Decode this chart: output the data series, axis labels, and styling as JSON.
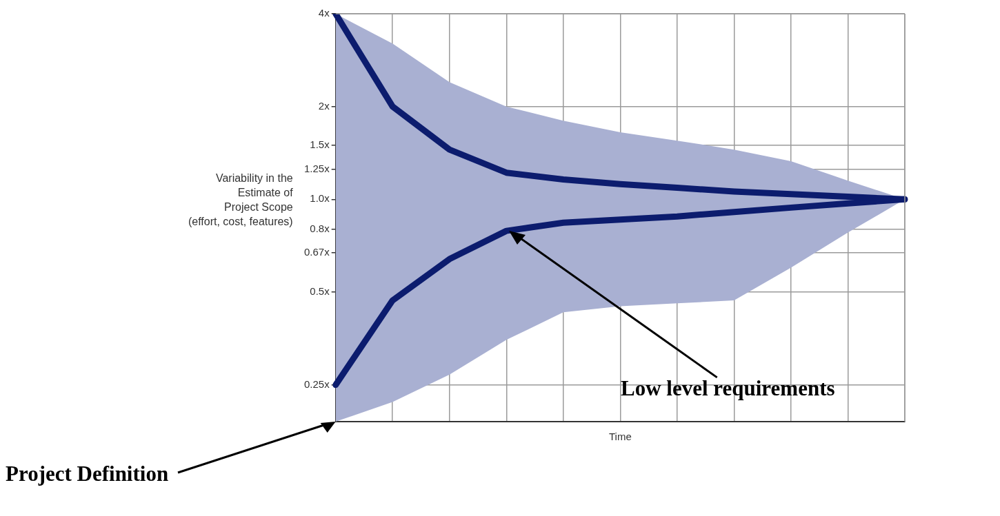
{
  "chart_data": {
    "type": "line",
    "xlabel": "Time",
    "ylabel": "Variability in the\nEstimate of\nProject Scope\n(effort, cost, features)",
    "categories": [
      null,
      null,
      null,
      null,
      null,
      null,
      null,
      null,
      null,
      null,
      null
    ],
    "series": [
      {
        "color": "#0c1c6e",
        "values": [
          4,
          2,
          1.45,
          1.22,
          1.16,
          1.12,
          1.09,
          1.06,
          1.04,
          1.02,
          1.0
        ],
        "lower": [
          0.19,
          0.22,
          0.27,
          0.35,
          0.43,
          0.45,
          0.46,
          0.47,
          0.6,
          0.78,
          1.0
        ],
        "upper": [
          4,
          3.2,
          2.4,
          2.0,
          1.8,
          1.65,
          1.55,
          1.45,
          1.33,
          1.15,
          1.0
        ]
      },
      {
        "color": "#0c1c6e",
        "values": [
          0.25,
          0.47,
          0.64,
          0.79,
          0.84,
          0.86,
          0.88,
          0.91,
          0.94,
          0.97,
          1.0
        ]
      }
    ],
    "log": true,
    "ylim": [
      0.19,
      4
    ],
    "yticks": [
      {
        "value": 0.25,
        "label": "0.25x"
      },
      {
        "value": 0.5,
        "label": "0.5x"
      },
      {
        "value": 0.67,
        "label": "0.67x"
      },
      {
        "value": 0.8,
        "label": "0.8x"
      },
      {
        "value": 1.0,
        "label": "1.0x"
      },
      {
        "value": 1.25,
        "label": "1.25x"
      },
      {
        "value": 1.5,
        "label": "1.5x"
      },
      {
        "value": 2,
        "label": "2x"
      },
      {
        "value": 4,
        "label": "4x"
      }
    ],
    "grid": true,
    "legend": false,
    "marker": "none",
    "line_style": "solid",
    "annotations": [
      "Project Definition",
      "Low level requirements"
    ]
  }
}
